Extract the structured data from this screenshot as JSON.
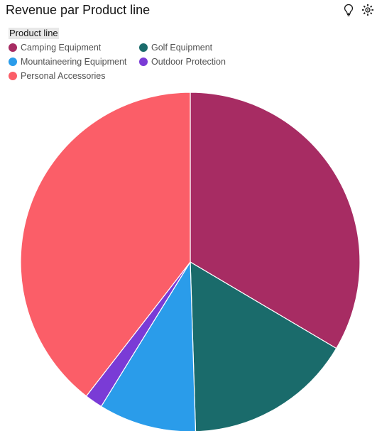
{
  "title": "Revenue par Product line",
  "toolbar": {
    "icons": [
      "lightbulb-icon",
      "settings-icon"
    ]
  },
  "legend": {
    "title": "Product line",
    "items": [
      {
        "label": "Camping Equipment",
        "color": "#a72c63"
      },
      {
        "label": "Golf Equipment",
        "color": "#1a6b6b"
      },
      {
        "label": "Mountaineering Equipment",
        "color": "#2a9cea"
      },
      {
        "label": "Outdoor Protection",
        "color": "#7a3bd6"
      },
      {
        "label": "Personal Accessories",
        "color": "#fb5e68"
      }
    ]
  },
  "chart_data": {
    "type": "pie",
    "title": "Revenue par Product line",
    "legend_title": "Product line",
    "legend_position": "top-left",
    "categories": [
      "Camping Equipment",
      "Golf Equipment",
      "Mountaineering Equipment",
      "Outdoor Protection",
      "Personal Accessories"
    ],
    "values": [
      33.5,
      16.0,
      9.3,
      1.7,
      39.5
    ],
    "value_unit": "percent of total revenue (estimated)",
    "colors": [
      "#a72c63",
      "#1a6b6b",
      "#2a9cea",
      "#7a3bd6",
      "#fb5e68"
    ]
  }
}
